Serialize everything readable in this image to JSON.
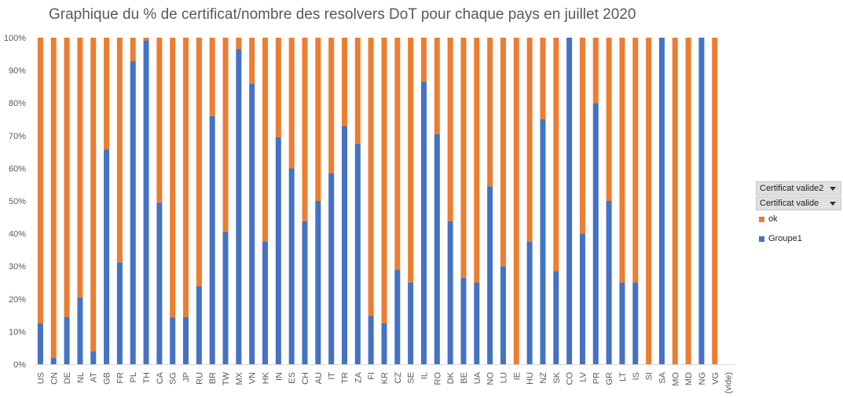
{
  "chart_data": {
    "type": "bar",
    "stacked": true,
    "title": "Graphique du % de certificat/nombre des resolvers DoT pour chaque pays en juillet 2020",
    "xlabel": "",
    "ylabel": "",
    "ylim": [
      0,
      100
    ],
    "y_ticks": [
      "0%",
      "10%",
      "20%",
      "30%",
      "40%",
      "50%",
      "60%",
      "70%",
      "80%",
      "90%",
      "100%"
    ],
    "grid": false,
    "legend_position": "right",
    "categories": [
      "US",
      "CN",
      "DE",
      "NL",
      "AT",
      "GB",
      "FR",
      "PL",
      "TH",
      "CA",
      "SG",
      "JP",
      "RU",
      "BR",
      "TW",
      "MX",
      "VN",
      "HK",
      "IN",
      "ES",
      "CH",
      "AU",
      "IT",
      "TR",
      "ZA",
      "FI",
      "KR",
      "CZ",
      "SE",
      "IL",
      "RO",
      "DK",
      "BE",
      "UA",
      "NO",
      "LU",
      "IE",
      "HU",
      "NZ",
      "SK",
      "CO",
      "LV",
      "PR",
      "GR",
      "LT",
      "IS",
      "SI",
      "SA",
      "MO",
      "MD",
      "NG",
      "VG",
      "(vide)"
    ],
    "series": [
      {
        "name": "Groupe1",
        "color": "#4472c4",
        "values": [
          12.5,
          2,
          14.5,
          20.5,
          4,
          65.8,
          31.2,
          92.8,
          99.2,
          49.5,
          14.3,
          14.5,
          23.8,
          76,
          40.5,
          96.5,
          86,
          37.5,
          69.5,
          60,
          43.8,
          50,
          58.5,
          73,
          67.6,
          14.8,
          12.5,
          29,
          25,
          86.5,
          70.5,
          43.8,
          26.5,
          25,
          54.5,
          30,
          0,
          37.5,
          75,
          28.5,
          100,
          40,
          80,
          50,
          25,
          25,
          0,
          100,
          0,
          0,
          100,
          0,
          0
        ]
      },
      {
        "name": "ok",
        "color": "#ed7d31",
        "values": [
          87.5,
          98,
          85.5,
          79.5,
          96,
          34.2,
          68.8,
          7.2,
          0.8,
          50.5,
          85.7,
          85.5,
          76.2,
          24,
          59.5,
          3.5,
          14,
          62.5,
          30.5,
          40,
          56.2,
          50,
          41.5,
          27,
          32.4,
          85.2,
          87.5,
          71,
          75,
          13.5,
          29.5,
          56.2,
          73.5,
          75,
          45.5,
          70,
          100,
          62.5,
          25,
          71.5,
          0,
          60,
          20,
          50,
          75,
          75,
          100,
          0,
          100,
          100,
          0,
          100,
          0
        ]
      }
    ]
  },
  "filters": [
    {
      "label": "Certificat valide2"
    },
    {
      "label": "Certificat valide"
    }
  ],
  "legend": [
    {
      "label": "ok",
      "color": "#ed7d31"
    },
    {
      "label": "Groupe1",
      "color": "#4472c4"
    }
  ]
}
